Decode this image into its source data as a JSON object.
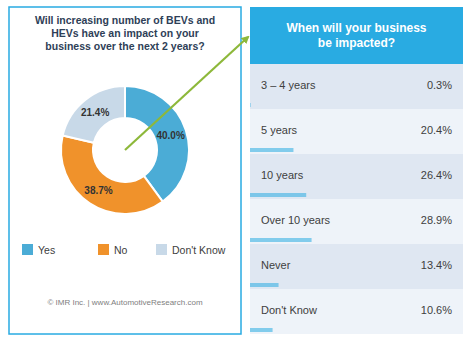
{
  "chart_data": [
    {
      "type": "pie",
      "title": "Will increasing number of BEVs and\nHEVs have an impact on your\nbusiness over the next 2 years?",
      "categories": [
        "Yes",
        "No",
        "Don't Know"
      ],
      "values": [
        40.0,
        38.7,
        21.4
      ],
      "value_labels": [
        "40.0%",
        "38.7%",
        "21.4%"
      ],
      "colors": [
        "#4bacd6",
        "#f0922b",
        "#c8d9e8"
      ],
      "data_labels": true,
      "legend": "bottom",
      "annotations": [
        "© IMR Inc. | www.AutomotiveResearch.com"
      ]
    },
    {
      "type": "table",
      "title": "When will your business\nbe impacted?",
      "categories": [
        "3 – 4 years",
        "5 years",
        "10 years",
        "Over 10 years",
        "Never",
        "Don't Know"
      ],
      "values": [
        0.3,
        20.4,
        26.4,
        28.9,
        13.4,
        10.6
      ],
      "value_labels": [
        "0.3%",
        "20.4%",
        "26.4%",
        "28.9%",
        "13.4%",
        "10.6%"
      ],
      "xlim": [
        0,
        100
      ],
      "color": "#29abe2",
      "data_labels": true
    }
  ]
}
